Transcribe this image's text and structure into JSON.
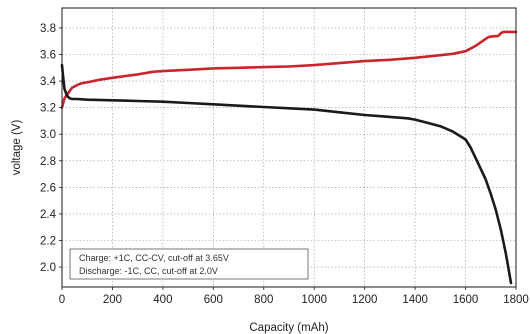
{
  "chart_data": {
    "type": "line",
    "title": "",
    "xlabel": "Capacity (mAh)",
    "ylabel": "voltage (V)",
    "xlim": [
      0,
      1800
    ],
    "ylim": [
      1.85,
      3.95
    ],
    "xticks": [
      "0",
      "200",
      "400",
      "600",
      "800",
      "1000",
      "1200",
      "1400",
      "1600",
      "1800"
    ],
    "yticks": [
      "2.0",
      "2.2",
      "2.4",
      "2.6",
      "2.8",
      "3.0",
      "3.2",
      "3.4",
      "3.6",
      "3.8"
    ],
    "grid": true,
    "legend_lines": [
      "Charge: +1C, CC-CV, cut-off at 3.65V",
      "Discharge: -1C, CC, cut-off at 2.0V"
    ],
    "legend_position": "bottom-left",
    "series": [
      {
        "color": "#c8252c",
        "x": [
          0,
          10,
          25,
          40,
          60,
          80,
          100,
          150,
          200,
          300,
          360,
          400,
          500,
          600,
          700,
          800,
          900,
          1000,
          1100,
          1200,
          1300,
          1400,
          1500,
          1550,
          1600,
          1640,
          1670,
          1690,
          1700,
          1730,
          1740,
          1750,
          1760,
          1780,
          1800
        ],
        "y": [
          3.2,
          3.27,
          3.31,
          3.35,
          3.37,
          3.385,
          3.39,
          3.41,
          3.425,
          3.45,
          3.47,
          3.475,
          3.485,
          3.495,
          3.5,
          3.505,
          3.51,
          3.52,
          3.535,
          3.55,
          3.56,
          3.575,
          3.595,
          3.605,
          3.625,
          3.665,
          3.705,
          3.73,
          3.735,
          3.74,
          3.76,
          3.77,
          3.77,
          3.77,
          3.77
        ]
      },
      {
        "color": "#1a1a1a",
        "x": [
          0,
          5,
          10,
          20,
          30,
          40,
          60,
          100,
          200,
          300,
          400,
          500,
          600,
          700,
          800,
          900,
          1000,
          1100,
          1200,
          1300,
          1370,
          1400,
          1450,
          1500,
          1550,
          1600,
          1620,
          1650,
          1680,
          1700,
          1720,
          1740,
          1760,
          1780
        ],
        "y": [
          3.52,
          3.42,
          3.34,
          3.29,
          3.27,
          3.265,
          3.265,
          3.26,
          3.255,
          3.25,
          3.245,
          3.235,
          3.225,
          3.215,
          3.205,
          3.195,
          3.185,
          3.165,
          3.145,
          3.13,
          3.12,
          3.11,
          3.085,
          3.06,
          3.02,
          2.96,
          2.9,
          2.78,
          2.66,
          2.55,
          2.43,
          2.28,
          2.1,
          1.88
        ]
      }
    ]
  }
}
